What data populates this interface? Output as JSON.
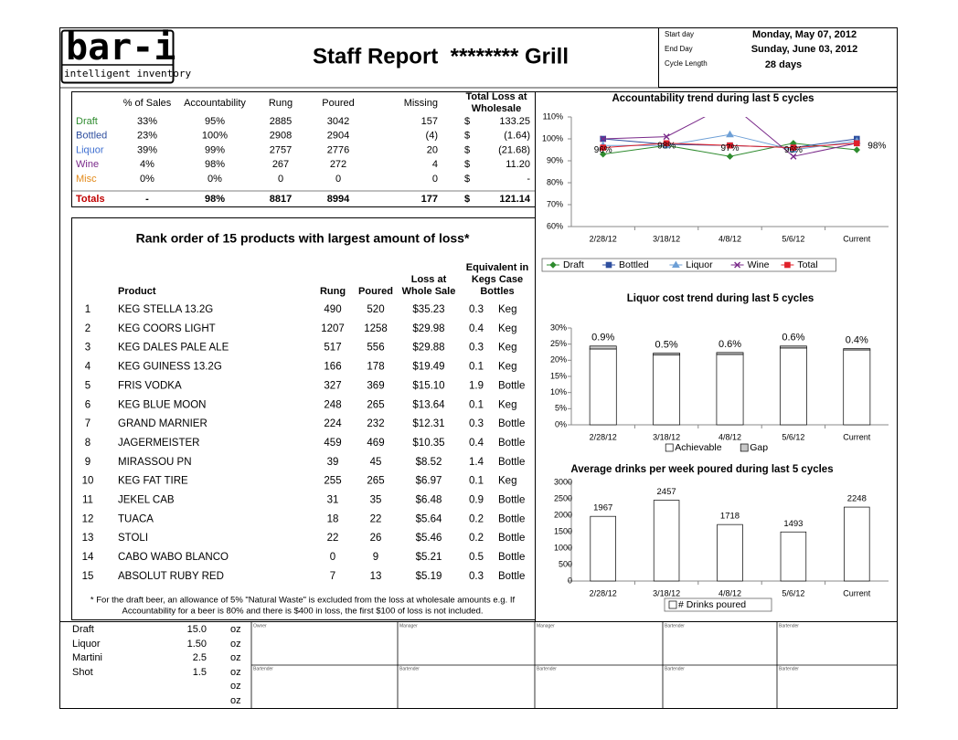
{
  "header": {
    "logo": "bar-i",
    "logo_tagline": "intelligent inventory",
    "title": "Staff Report  ******** Grill",
    "fields": [
      {
        "label": "Start day",
        "value": "Monday, May 07, 2012"
      },
      {
        "label": "End Day",
        "value": "Sunday, June 03, 2012"
      },
      {
        "label": "Cycle Length",
        "value": "28 days"
      }
    ]
  },
  "summary": {
    "columns": [
      [
        "% of Sales"
      ],
      [
        "Accountability"
      ],
      [
        "Rung"
      ],
      [
        "Poured"
      ],
      [
        "Missing"
      ],
      [
        "Total Loss at",
        "Wholesale"
      ]
    ],
    "rows": [
      [
        "Draft",
        "33%",
        "95%",
        "2885",
        "3042",
        "157",
        "$",
        "133.25"
      ],
      [
        "Bottled",
        "23%",
        "100%",
        "2908",
        "2904",
        "(4)",
        "$",
        "(1.64)"
      ],
      [
        "Liquor",
        "39%",
        "99%",
        "2757",
        "2776",
        "20",
        "$",
        "(21.68)"
      ],
      [
        "Wine",
        "4%",
        "98%",
        "267",
        "272",
        "4",
        "$",
        "11.20"
      ],
      [
        "Misc",
        "0%",
        "0%",
        "0",
        "0",
        "0",
        "$",
        "-"
      ]
    ],
    "totals": [
      "Totals",
      "-",
      "98%",
      "8817",
      "8994",
      "177",
      "$",
      "121.14"
    ]
  },
  "loss_ranking": {
    "title": "Rank order of 15 products with largest amount of loss*",
    "columns": [
      [
        "Product"
      ],
      [
        "Rung"
      ],
      [
        "Poured"
      ],
      [
        "Loss at",
        "Whole Sale"
      ],
      [
        "Equivalent in",
        "Kegs Case",
        "Bottles"
      ]
    ],
    "rows": [
      [
        "1",
        "KEG STELLA 13.2G",
        "490",
        "520",
        "$35.23",
        "0.3",
        "Keg"
      ],
      [
        "2",
        "KEG COORS LIGHT",
        "1207",
        "1258",
        "$29.98",
        "0.4",
        "Keg"
      ],
      [
        "3",
        "KEG DALES PALE ALE",
        "517",
        "556",
        "$29.88",
        "0.3",
        "Keg"
      ],
      [
        "4",
        "KEG GUINESS 13.2G",
        "166",
        "178",
        "$19.49",
        "0.1",
        "Keg"
      ],
      [
        "5",
        "FRIS VODKA",
        "327",
        "369",
        "$15.10",
        "1.9",
        "Bottle"
      ],
      [
        "6",
        "KEG BLUE MOON",
        "248",
        "265",
        "$13.64",
        "0.1",
        "Keg"
      ],
      [
        "7",
        "GRAND MARNIER",
        "224",
        "232",
        "$12.31",
        "0.3",
        "Bottle"
      ],
      [
        "8",
        "JAGERMEISTER",
        "459",
        "469",
        "$10.35",
        "0.4",
        "Bottle"
      ],
      [
        "9",
        "MIRASSOU PN",
        "39",
        "45",
        "$8.52",
        "1.4",
        "Bottle"
      ],
      [
        "10",
        "KEG FAT TIRE",
        "255",
        "265",
        "$6.97",
        "0.1",
        "Keg"
      ],
      [
        "11",
        "JEKEL CAB",
        "31",
        "35",
        "$6.48",
        "0.9",
        "Bottle"
      ],
      [
        "12",
        "TUACA",
        "18",
        "22",
        "$5.64",
        "0.2",
        "Bottle"
      ],
      [
        "13",
        "STOLI",
        "22",
        "26",
        "$5.46",
        "0.2",
        "Bottle"
      ],
      [
        "14",
        "CABO WABO BLANCO",
        "0",
        "9",
        "$5.21",
        "0.5",
        "Bottle"
      ],
      [
        "15",
        "ABSOLUT RUBY RED",
        "7",
        "13",
        "$5.19",
        "0.3",
        "Bottle"
      ]
    ],
    "footnote": [
      "* For the draft beer, an allowance of 5% \"Natural Waste\" is excluded from the loss at wholesale amounts e.g. If",
      "Accountability for a beer is 80% and there is $400 in loss, the first $100 of loss is not included."
    ]
  },
  "units": {
    "rows": [
      [
        "Draft",
        "15.0",
        "oz"
      ],
      [
        "Liquor",
        "1.50",
        "oz"
      ],
      [
        "Martini",
        "2.5",
        "oz"
      ],
      [
        "Shot",
        "1.5",
        "oz"
      ]
    ],
    "unit_only_rows": [
      "oz",
      "oz"
    ]
  },
  "signatures": {
    "rows": [
      [
        "Owner",
        "Manager",
        "Manager",
        "Bartender",
        "Bartender"
      ],
      [
        "Bartender",
        "Bartender",
        "Bartender",
        "Bartender",
        "Bartender"
      ]
    ]
  },
  "chart_data": [
    {
      "type": "line",
      "title": "Accountability trend during last 5 cycles",
      "categories": [
        "2/28/12",
        "3/18/12",
        "4/8/12",
        "5/6/12",
        "Current"
      ],
      "ylim": [
        60,
        110
      ],
      "yticks": [
        {
          "value": 60,
          "label": "60%"
        },
        {
          "value": 70,
          "label": "70%"
        },
        {
          "value": 80,
          "label": "80%"
        },
        {
          "value": 90,
          "label": "90%"
        },
        {
          "value": 100,
          "label": "100%"
        },
        {
          "value": 110,
          "label": "110%"
        }
      ],
      "legend": "bottom",
      "series": [
        {
          "name": "Draft",
          "color": "#2e8b2e",
          "values": [
            93,
            97,
            92,
            98,
            95
          ]
        },
        {
          "name": "Bottled",
          "color": "#2f4f9f",
          "values": [
            100,
            97.5,
            97,
            96,
            100
          ]
        },
        {
          "name": "Liquor",
          "color": "#6d9fd6",
          "values": [
            97,
            97,
            102,
            95,
            99
          ]
        },
        {
          "name": "Wine",
          "color": "#7a2a8a",
          "values": [
            100,
            101,
            116,
            92,
            98
          ]
        },
        {
          "name": "Total",
          "color": "#e0202a",
          "values": [
            96,
            98,
            97,
            96,
            98
          ],
          "value_labels": [
            "96%",
            "98%",
            "97%",
            "96%",
            "98%"
          ]
        }
      ]
    },
    {
      "type": "bar",
      "stacked": true,
      "title": "Liquor cost trend during last 5 cycles",
      "categories": [
        "2/28/12",
        "3/18/12",
        "4/8/12",
        "5/6/12",
        "Current"
      ],
      "ylim": [
        0,
        30
      ],
      "yticks": [
        {
          "value": 0,
          "label": "0%"
        },
        {
          "value": 5,
          "label": "5%"
        },
        {
          "value": 10,
          "label": "10%"
        },
        {
          "value": 15,
          "label": "15%"
        },
        {
          "value": 20,
          "label": "20%"
        },
        {
          "value": 25,
          "label": "25%"
        },
        {
          "value": 30,
          "label": "30%"
        }
      ],
      "legend": "bottom",
      "series": [
        {
          "name": "Achievable",
          "color": "#ffffff",
          "values": [
            23.5,
            21.7,
            21.8,
            23.8,
            23.2
          ]
        },
        {
          "name": "Gap",
          "color": "#c8c8c8",
          "values": [
            0.9,
            0.5,
            0.6,
            0.6,
            0.4
          ],
          "value_labels": [
            "0.9%",
            "0.5%",
            "0.6%",
            "0.6%",
            "0.4%"
          ]
        }
      ]
    },
    {
      "type": "bar",
      "title": "Average drinks per week poured during last 5 cycles",
      "categories": [
        "2/28/12",
        "3/18/12",
        "4/8/12",
        "5/6/12",
        "Current"
      ],
      "ylim": [
        0,
        3000
      ],
      "yticks": [
        0,
        500,
        1000,
        1500,
        2000,
        2500,
        3000
      ],
      "legend": "bottom",
      "data_labels": true,
      "series": [
        {
          "name": "# Drinks poured",
          "color": "#ffffff",
          "values": [
            1967,
            2457,
            1718,
            1493,
            2248
          ]
        }
      ]
    }
  ]
}
